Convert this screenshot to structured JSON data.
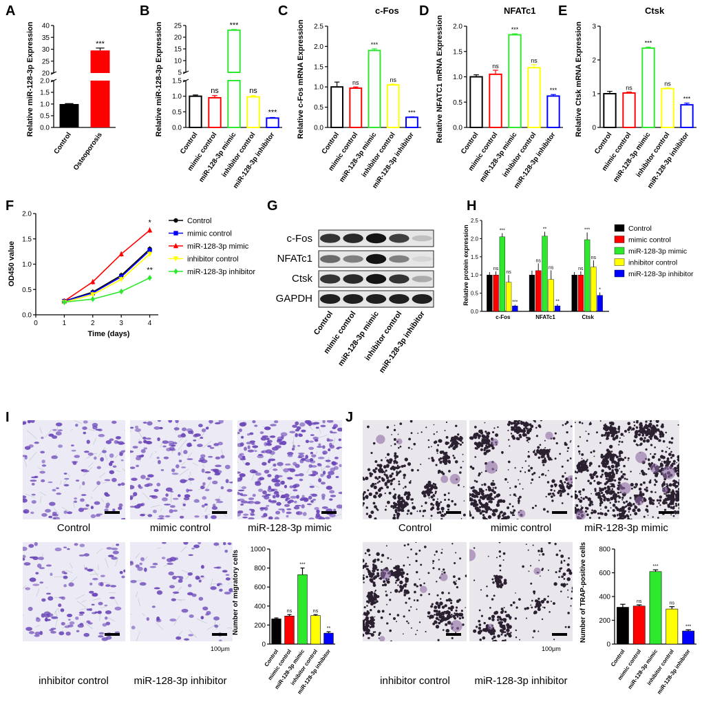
{
  "colors": {
    "black": "#000000",
    "red": "#ff0000",
    "green": "#2ee82e",
    "yellow": "#ffff00",
    "blue": "#0000ff",
    "violet": "#6a45b8",
    "violet_bg": "#eceaf4",
    "dark_purple": "#2a2030",
    "trap_bg": "#e9e6ec"
  },
  "panel_labels": {
    "A": "A",
    "B": "B",
    "C": "C",
    "D": "D",
    "E": "E",
    "F": "F",
    "G": "G",
    "H": "H",
    "I": "I",
    "J": "J"
  },
  "charts": {
    "A": {
      "type": "bar",
      "title": "",
      "ylabel": "Relative miR-128-3p Expression",
      "categories": [
        "Control",
        "Osteoporosis"
      ],
      "values": [
        1.0,
        29.5
      ],
      "errors": [
        0.02,
        1.0
      ],
      "signif": [
        "",
        "***"
      ],
      "yticks_upper": [
        "20",
        "25",
        "30",
        "35",
        "40"
      ],
      "yticks_lower": [
        "0.0",
        "0.5",
        "1.0",
        "1.5",
        "2.0"
      ]
    },
    "B": {
      "type": "bar",
      "title": "",
      "ylabel": "Relative miR-128-3p Expression",
      "categories": [
        "Control",
        "mimic control",
        "miR-128-3p mimic",
        "inhibitor control",
        "miR-128-3p inhibitor"
      ],
      "values": [
        1.0,
        0.95,
        23.0,
        0.98,
        0.3
      ],
      "errors": [
        0.04,
        0.07,
        0.3,
        0.04,
        0.02
      ],
      "signif": [
        "",
        "ns",
        "***",
        "ns",
        "***"
      ],
      "yticks_upper": [
        "5",
        "10",
        "15",
        "20",
        "25"
      ],
      "yticks_lower": [
        "0.0",
        "0.5",
        "1.0",
        "1.5"
      ]
    },
    "C": {
      "type": "bar",
      "title": "c-Fos",
      "ylabel": "Relative c-Fos mRNA Expression",
      "categories": [
        "Control",
        "mimic control",
        "miR-128-3p mimic",
        "inhibitor control",
        "miR-128-3p inhibitor"
      ],
      "values": [
        1.0,
        0.97,
        1.9,
        1.05,
        0.25
      ],
      "errors": [
        0.12,
        0.03,
        0.04,
        0.02,
        0.01
      ],
      "signif": [
        "",
        "ns",
        "***",
        "ns",
        "***"
      ],
      "ylim": [
        0,
        2.5
      ],
      "yticks": [
        "0.0",
        "0.5",
        "1.0",
        "1.5",
        "2.0",
        "2.5"
      ]
    },
    "D": {
      "type": "bar",
      "title": "NFATc1",
      "ylabel": "Relative NFATC1 mRNA Expression",
      "categories": [
        "Control",
        "mimic control",
        "miR-128-3p mimic",
        "inhibitor control",
        "miR-128-3p inhibitor"
      ],
      "values": [
        1.0,
        1.05,
        1.83,
        1.18,
        0.62
      ],
      "errors": [
        0.04,
        0.08,
        0.02,
        0.06,
        0.03
      ],
      "signif": [
        "",
        "ns",
        "***",
        "ns",
        "***"
      ],
      "ylim": [
        0,
        2.0
      ],
      "yticks": [
        "0.0",
        "0.5",
        "1.0",
        "1.5",
        "2.0"
      ]
    },
    "E": {
      "type": "bar",
      "title": "Ctsk",
      "ylabel": "Relative Ctsk mRNA Expression",
      "categories": [
        "Control",
        "mimic control",
        "miR-128-3p mimic",
        "inhibitor control",
        "miR-128-3p inhibitor"
      ],
      "values": [
        1.0,
        1.02,
        2.35,
        1.15,
        0.67
      ],
      "errors": [
        0.07,
        0.03,
        0.03,
        0.02,
        0.05
      ],
      "signif": [
        "",
        "ns",
        "***",
        "ns",
        "***"
      ],
      "ylim": [
        0,
        3
      ],
      "yticks": [
        "0",
        "1",
        "2",
        "3"
      ]
    },
    "F": {
      "type": "line",
      "xlabel": "Time (days)",
      "ylabel": "OD450 value",
      "x": [
        1,
        2,
        3,
        4
      ],
      "xticks": [
        "0",
        "1",
        "2",
        "3",
        "4"
      ],
      "yticks": [
        "0.0",
        "0.5",
        "1.0",
        "1.5",
        "2.0"
      ],
      "xlim": [
        0,
        4.3
      ],
      "ylim": [
        0,
        2.0
      ],
      "series": [
        {
          "name": "Control",
          "values": [
            0.27,
            0.45,
            0.78,
            1.3
          ],
          "marker": "circle"
        },
        {
          "name": "mimic control",
          "values": [
            0.27,
            0.43,
            0.75,
            1.27
          ],
          "marker": "square"
        },
        {
          "name": "miR-128-3p mimic",
          "values": [
            0.27,
            0.65,
            1.2,
            1.67
          ],
          "marker": "triangle"
        },
        {
          "name": "inhibitor control",
          "values": [
            0.25,
            0.4,
            0.7,
            1.2
          ],
          "marker": "triangle-down"
        },
        {
          "name": "miR-128-3p inhibitor",
          "values": [
            0.25,
            0.31,
            0.46,
            0.73
          ],
          "marker": "diamond"
        }
      ],
      "signif": [
        "",
        "",
        "*",
        "",
        "**"
      ]
    },
    "H": {
      "type": "bar",
      "ylabel": "Relative protein expression",
      "groups": [
        "c-Fos",
        "NFATc1",
        "Ctsk"
      ],
      "ylim": [
        0,
        2.5
      ],
      "yticks": [
        "0.0",
        "0.5",
        "1.0",
        "1.5",
        "2.0",
        "2.5"
      ],
      "series": [
        {
          "name": "Control",
          "values": [
            1.0,
            1.0,
            1.0
          ],
          "errors": [
            0.08,
            0.12,
            0.08
          ],
          "signif": [
            "",
            "",
            ""
          ]
        },
        {
          "name": "mimic control",
          "values": [
            1.0,
            1.12,
            1.0
          ],
          "errors": [
            0.1,
            0.2,
            0.1
          ],
          "signif": [
            "ns",
            "ns",
            "ns"
          ]
        },
        {
          "name": "miR-128-3p mimic",
          "values": [
            2.05,
            2.07,
            1.97
          ],
          "errors": [
            0.1,
            0.12,
            0.2
          ],
          "signif": [
            "***",
            "**",
            "***"
          ]
        },
        {
          "name": "inhibitor control",
          "values": [
            0.8,
            0.88,
            1.22
          ],
          "errors": [
            0.2,
            0.25,
            0.18
          ],
          "signif": [
            "ns",
            "ns",
            "ns"
          ]
        },
        {
          "name": "miR-128-3p inhibitor",
          "values": [
            0.15,
            0.15,
            0.44
          ],
          "errors": [
            0.03,
            0.05,
            0.08
          ],
          "signif": [
            "***",
            "**",
            "*"
          ]
        }
      ]
    },
    "I": {
      "type": "bar",
      "ylabel": "Number of migratory cells",
      "categories": [
        "Control",
        "mimic control",
        "miR-128-3p mimic",
        "inhibitor control",
        "miR-128-3p inhibitor"
      ],
      "values": [
        265,
        295,
        730,
        300,
        115
      ],
      "errors": [
        10,
        15,
        70,
        10,
        15
      ],
      "signif": [
        "",
        "ns",
        "***",
        "ns",
        "**"
      ],
      "ylim": [
        0,
        1000
      ],
      "yticks": [
        "0",
        "200",
        "400",
        "600",
        "800",
        "1000"
      ]
    },
    "J": {
      "type": "bar",
      "ylabel": "Number of TRAP-positive cells",
      "categories": [
        "Control",
        "mimic control",
        "miR-128-3p mimic",
        "inhibitor control",
        "miR-128-3p inhibitor"
      ],
      "values": [
        310,
        320,
        610,
        295,
        110
      ],
      "errors": [
        25,
        10,
        15,
        20,
        10
      ],
      "signif": [
        "",
        "ns",
        "***",
        "ns",
        "***"
      ],
      "ylim": [
        0,
        800
      ],
      "yticks": [
        "0",
        "200",
        "400",
        "600",
        "800"
      ]
    }
  },
  "western_blot": {
    "rows": [
      "c-Fos",
      "NFATc1",
      "Ctsk",
      "GAPDH"
    ],
    "lanes": [
      "Control",
      "mimic control",
      "miR-128-3p mimic",
      "inhibitor control",
      "miR-128-3p inhibitor"
    ],
    "intensity": [
      [
        0.85,
        0.9,
        1.0,
        0.8,
        0.2
      ],
      [
        0.6,
        0.5,
        1.0,
        0.5,
        0.1
      ],
      [
        0.85,
        0.9,
        1.0,
        0.85,
        0.3
      ],
      [
        0.95,
        0.95,
        0.95,
        0.95,
        0.95
      ]
    ]
  },
  "micrographs_I": {
    "captions": [
      "Control",
      "mimic control",
      "miR-128-3p  mimic",
      "inhibitor control",
      "miR-128-3p inhibitor"
    ],
    "density": [
      0.35,
      0.5,
      1.0,
      0.32,
      0.18
    ],
    "scale_text": "100μm"
  },
  "micrographs_J": {
    "captions": [
      "Control",
      "mimic control",
      "miR-128-3p  mimic",
      "inhibitor control",
      "miR-128-3p inhibitor"
    ],
    "density": [
      0.45,
      0.55,
      1.0,
      0.5,
      0.22
    ],
    "scale_text": "100μm"
  }
}
